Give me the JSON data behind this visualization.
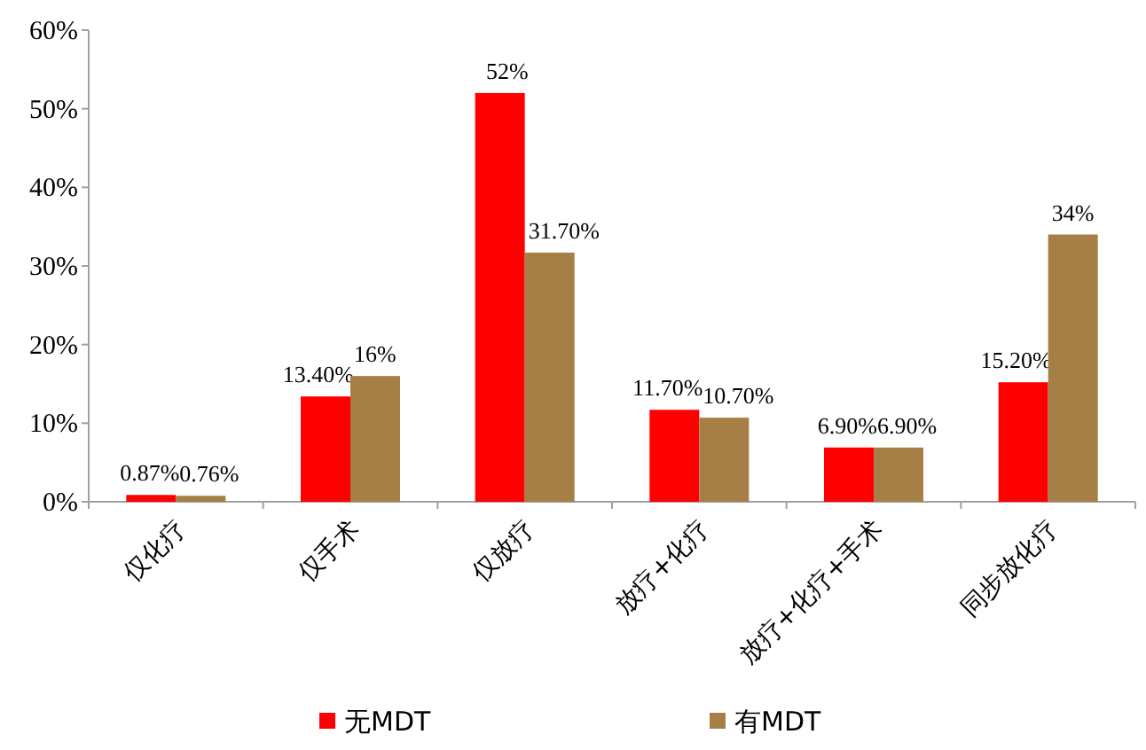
{
  "chart_data": {
    "type": "bar",
    "categories": [
      "仅化疗",
      "仅手术",
      "仅放疗",
      "放疗+化疗",
      "放疗+化疗+手术",
      "同步放化疗"
    ],
    "series": [
      {
        "name": "无MDT",
        "color": "#ff0000",
        "values": [
          0.87,
          13.4,
          52,
          11.7,
          6.9,
          15.2
        ],
        "value_labels": [
          "0.87%",
          "13.40%",
          "52%",
          "11.70%",
          "6.90%",
          "15.20%"
        ]
      },
      {
        "name": "有MDT",
        "color": "#a57f45",
        "values": [
          0.76,
          16,
          31.7,
          10.7,
          6.9,
          34
        ],
        "value_labels": [
          "0.76%",
          "16%",
          "31.70%",
          "10.70%",
          "6.90%",
          "34%"
        ]
      }
    ],
    "ylim": [
      0,
      60
    ],
    "yticks": [
      {
        "value": 0,
        "label": "0%"
      },
      {
        "value": 10,
        "label": "10%"
      },
      {
        "value": 20,
        "label": "20%"
      },
      {
        "value": 30,
        "label": "30%"
      },
      {
        "value": 40,
        "label": "40%"
      },
      {
        "value": 50,
        "label": "50%"
      },
      {
        "value": 60,
        "label": "60%"
      }
    ],
    "grid": false,
    "legend": "bottom"
  }
}
